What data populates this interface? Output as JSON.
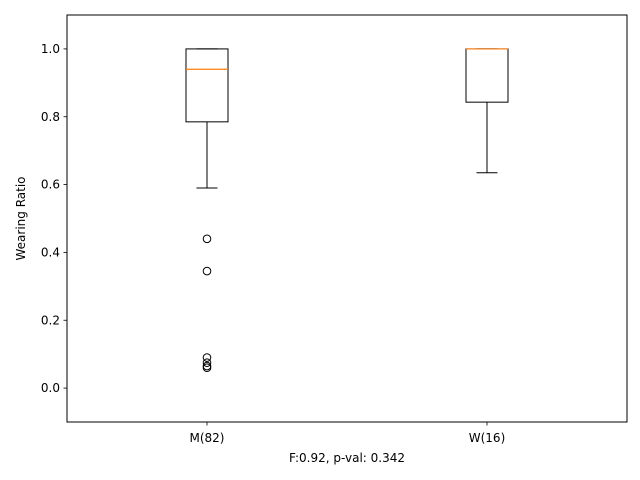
{
  "chart_data": {
    "type": "boxplot",
    "xlabel": "F:0.92, p-val: 0.342",
    "ylabel": "Wearing Ratio",
    "ylim": [
      -0.1,
      1.1
    ],
    "yticks": [
      0.0,
      0.2,
      0.4,
      0.6,
      0.8,
      1.0
    ],
    "ytick_labels": [
      "0.0",
      "0.2",
      "0.4",
      "0.6",
      "0.8",
      "1.0"
    ],
    "categories": [
      "M(82)",
      "W(16)"
    ],
    "boxes": [
      {
        "category": "M(82)",
        "whisker_low": 0.59,
        "q1": 0.785,
        "median": 0.94,
        "q3": 1.0,
        "whisker_high": 1.0,
        "outliers": [
          0.44,
          0.345,
          0.09,
          0.075,
          0.065,
          0.06
        ]
      },
      {
        "category": "W(16)",
        "whisker_low": 0.635,
        "q1": 0.843,
        "median": 1.0,
        "q3": 1.0,
        "whisker_high": 1.0,
        "outliers": []
      }
    ],
    "grid": false,
    "colors": {
      "box": "#000000",
      "median": "#ff7f0e",
      "outlier": "#000000"
    }
  }
}
